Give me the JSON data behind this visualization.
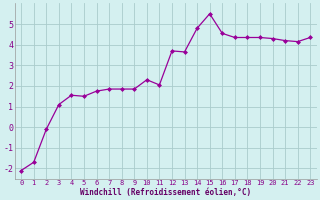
{
  "x": [
    0,
    1,
    2,
    3,
    4,
    5,
    6,
    7,
    8,
    9,
    10,
    11,
    12,
    13,
    14,
    15,
    16,
    17,
    18,
    19,
    20,
    21,
    22,
    23
  ],
  "y": [
    -2.1,
    -1.7,
    -0.1,
    1.1,
    1.55,
    1.5,
    1.75,
    1.85,
    1.85,
    1.85,
    2.3,
    2.05,
    3.7,
    3.65,
    4.8,
    5.5,
    4.55,
    4.35,
    4.35,
    4.35,
    4.3,
    4.2,
    4.15,
    4.35
  ],
  "line_color": "#990099",
  "marker": "D",
  "marker_size": 2.0,
  "bg_color": "#d4f0f0",
  "grid_color": "#aacccc",
  "xlabel": "Windchill (Refroidissement éolien,°C)",
  "xlabel_color": "#660066",
  "tick_color": "#880088",
  "ylim": [
    -2.5,
    6.0
  ],
  "xlim": [
    -0.5,
    23.5
  ],
  "yticks": [
    -2,
    -1,
    0,
    1,
    2,
    3,
    4,
    5
  ],
  "xticks": [
    0,
    1,
    2,
    3,
    4,
    5,
    6,
    7,
    8,
    9,
    10,
    11,
    12,
    13,
    14,
    15,
    16,
    17,
    18,
    19,
    20,
    21,
    22,
    23
  ],
  "xtick_labels": [
    "0",
    "1",
    "2",
    "3",
    "4",
    "5",
    "6",
    "7",
    "8",
    "9",
    "10",
    "11",
    "12",
    "13",
    "14",
    "15",
    "16",
    "17",
    "18",
    "19",
    "20",
    "21",
    "22",
    "23"
  ]
}
